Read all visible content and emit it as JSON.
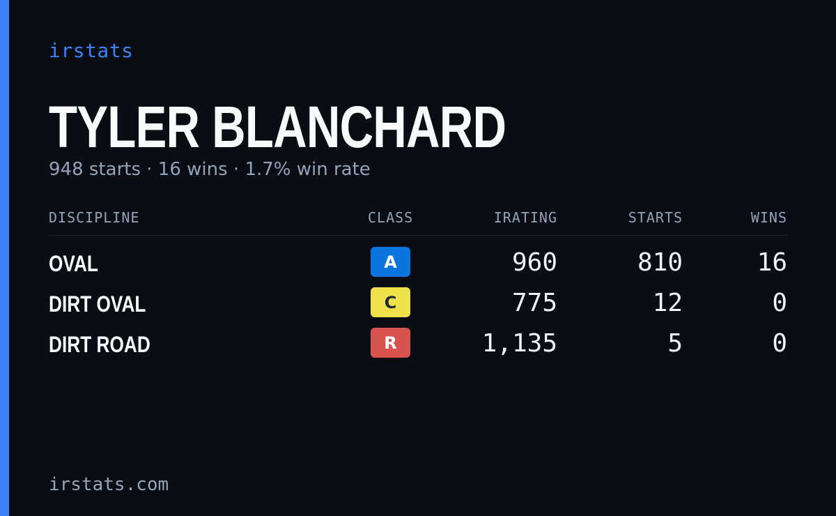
{
  "brand": "irstats",
  "driver": {
    "name": "TYLER BLANCHARD",
    "summary": "948 starts · 16 wins · 1.7% win rate"
  },
  "table": {
    "headers": {
      "discipline": "DISCIPLINE",
      "class": "CLASS",
      "irating": "IRATING",
      "starts": "STARTS",
      "wins": "WINS"
    },
    "rows": [
      {
        "discipline": "OVAL",
        "class": "A",
        "class_color": "#0b74de",
        "class_text_color": "#ffffff",
        "irating": "960",
        "starts": "810",
        "wins": "16"
      },
      {
        "discipline": "DIRT OVAL",
        "class": "C",
        "class_color": "#f0e14a",
        "class_text_color": "#1f2937",
        "irating": "775",
        "starts": "12",
        "wins": "0"
      },
      {
        "discipline": "DIRT ROAD",
        "class": "R",
        "class_color": "#d9534f",
        "class_text_color": "#ffffff",
        "irating": "1,135",
        "starts": "5",
        "wins": "0"
      }
    ]
  },
  "footer": "irstats.com",
  "colors": {
    "background": "#0a0d14",
    "accent": "#3b82f6",
    "muted": "#94a3b8",
    "text": "#f8fafc"
  }
}
